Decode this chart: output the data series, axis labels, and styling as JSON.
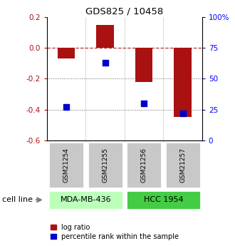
{
  "title": "GDS825 / 10458",
  "samples": [
    "GSM21254",
    "GSM21255",
    "GSM21256",
    "GSM21257"
  ],
  "log_ratio": [
    -0.07,
    0.15,
    -0.22,
    -0.45
  ],
  "percentile_rank": [
    27,
    63,
    30,
    22
  ],
  "left_ylim": [
    -0.6,
    0.2
  ],
  "right_ylim": [
    0,
    100
  ],
  "left_yticks": [
    -0.6,
    -0.4,
    -0.2,
    0.0,
    0.2
  ],
  "right_yticks": [
    0,
    25,
    50,
    75,
    100
  ],
  "right_yticklabels": [
    "0",
    "25",
    "50",
    "75",
    "100%"
  ],
  "cell_lines": [
    "MDA-MB-436",
    "HCC 1954"
  ],
  "cell_line_samples": [
    [
      0,
      1
    ],
    [
      2,
      3
    ]
  ],
  "cell_line_colors": [
    "#bbffbb",
    "#44cc44"
  ],
  "sample_box_color": "#c8c8c8",
  "bar_color": "#aa1111",
  "dot_color": "#0000cc",
  "hline_y": 0.0,
  "dotted_lines": [
    -0.2,
    -0.4
  ],
  "legend_labels": [
    "log ratio",
    "percentile rank within the sample"
  ],
  "cell_line_label": "cell line"
}
